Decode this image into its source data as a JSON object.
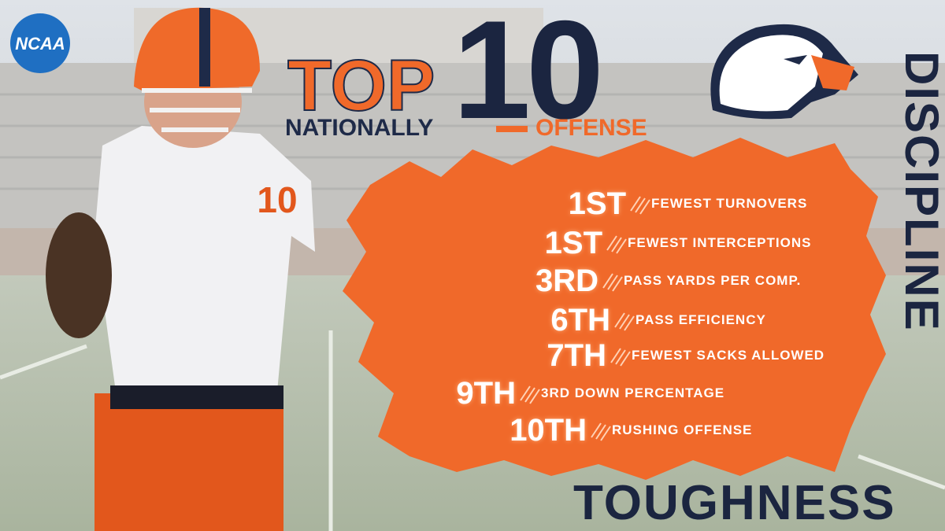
{
  "logo": "NCAA",
  "headline": {
    "top": "TOP",
    "number": "10",
    "sub_left": "NATIONALLY",
    "sub_right": "OFFENSE"
  },
  "rankings": [
    {
      "rank": "1ST",
      "stat": "FEWEST TURNOVERS"
    },
    {
      "rank": "1ST",
      "stat": "FEWEST INTERCEPTIONS"
    },
    {
      "rank": "3RD",
      "stat": "PASS YARDS PER COMP."
    },
    {
      "rank": "6TH",
      "stat": "PASS EFFICIENCY"
    },
    {
      "rank": "7TH",
      "stat": "FEWEST SACKS ALLOWED"
    },
    {
      "rank": "9TH",
      "stat": "3RD DOWN PERCENTAGE"
    },
    {
      "rank": "10TH",
      "stat": "RUSHING OFFENSE"
    }
  ],
  "side_word": "DISCIPLINE",
  "bottom_word": "TOUGHNESS"
}
